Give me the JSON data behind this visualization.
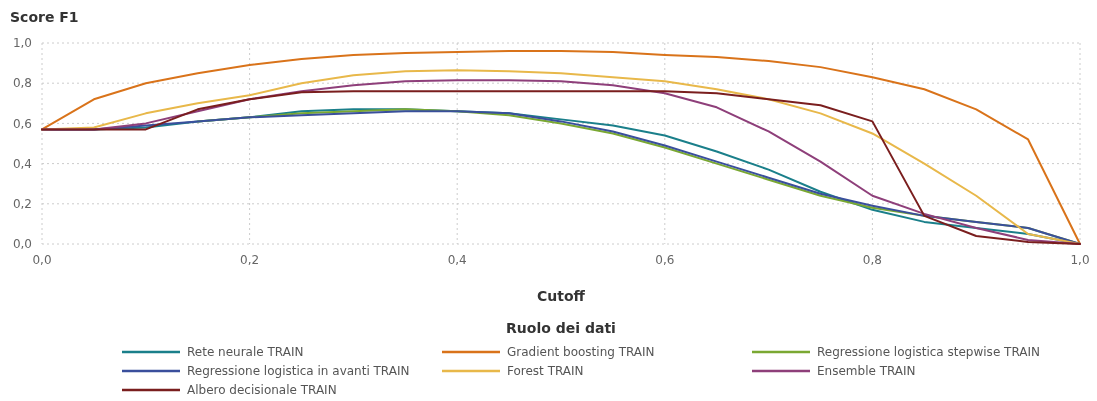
{
  "chart_data": {
    "type": "line",
    "title": "Score F1",
    "xlabel": "Cutoff",
    "legend_title": "Ruolo dei dati",
    "legend": "bottom",
    "grid": true,
    "marker": "none",
    "line_style": "solid",
    "x": [
      0,
      0.05,
      0.1,
      0.15,
      0.2,
      0.25,
      0.3,
      0.35,
      0.4,
      0.45,
      0.5,
      0.55,
      0.6,
      0.65,
      0.7,
      0.75,
      0.8,
      0.85,
      0.9,
      0.95,
      1
    ],
    "xlim": [
      0,
      1
    ],
    "ylim": [
      0,
      1
    ],
    "xticks": [
      {
        "value": 0,
        "label": "0,0"
      },
      {
        "value": 0.2,
        "label": "0,2"
      },
      {
        "value": 0.4,
        "label": "0,4"
      },
      {
        "value": 0.6,
        "label": "0,6"
      },
      {
        "value": 0.8,
        "label": "0,8"
      },
      {
        "value": 1,
        "label": "1,0"
      }
    ],
    "yticks": [
      {
        "value": 0,
        "label": "0,0"
      },
      {
        "value": 0.2,
        "label": "0,2"
      },
      {
        "value": 0.4,
        "label": "0,4"
      },
      {
        "value": 0.6,
        "label": "0,6"
      },
      {
        "value": 0.8,
        "label": "0,8"
      },
      {
        "value": 1,
        "label": "1,0"
      }
    ],
    "series": [
      {
        "name": "Rete neurale TRAIN",
        "color": "#1a7f8a",
        "values": [
          0.57,
          0.57,
          0.58,
          0.61,
          0.63,
          0.66,
          0.67,
          0.67,
          0.66,
          0.65,
          0.62,
          0.59,
          0.54,
          0.46,
          0.37,
          0.26,
          0.17,
          0.11,
          0.08,
          0.05,
          0
        ]
      },
      {
        "name": "Gradient boosting TRAIN",
        "color": "#d9731a",
        "values": [
          0.57,
          0.72,
          0.8,
          0.85,
          0.89,
          0.92,
          0.94,
          0.95,
          0.955,
          0.96,
          0.96,
          0.955,
          0.94,
          0.93,
          0.91,
          0.88,
          0.83,
          0.77,
          0.67,
          0.52,
          0
        ]
      },
      {
        "name": "Regressione logistica stepwise TRAIN",
        "color": "#7aa832",
        "values": [
          null,
          null,
          null,
          0.61,
          0.63,
          0.65,
          0.66,
          0.67,
          0.66,
          0.64,
          0.6,
          0.55,
          0.48,
          0.4,
          0.32,
          0.24,
          0.18,
          0.14,
          0.11,
          0.08,
          0
        ]
      },
      {
        "name": "Regressione logistica in avanti TRAIN",
        "color": "#3a4f9c",
        "values": [
          0.57,
          0.57,
          0.59,
          0.61,
          0.63,
          0.64,
          0.65,
          0.66,
          0.66,
          0.65,
          0.61,
          0.56,
          0.49,
          0.41,
          0.33,
          0.25,
          0.19,
          0.14,
          0.11,
          0.08,
          0
        ]
      },
      {
        "name": "Forest TRAIN",
        "color": "#e8b84a",
        "values": [
          0.57,
          0.58,
          0.65,
          0.7,
          0.74,
          0.8,
          0.84,
          0.86,
          0.865,
          0.86,
          0.85,
          0.83,
          0.81,
          0.77,
          0.72,
          0.65,
          0.55,
          0.4,
          0.24,
          0.05,
          0
        ]
      },
      {
        "name": "Ensemble TRAIN",
        "color": "#8e3f7a",
        "values": [
          0.57,
          0.57,
          0.6,
          0.66,
          0.72,
          0.76,
          0.79,
          0.81,
          0.815,
          0.815,
          0.81,
          0.79,
          0.75,
          0.68,
          0.56,
          0.41,
          0.24,
          0.15,
          0.08,
          0.02,
          0
        ]
      },
      {
        "name": "Albero decisionale TRAIN",
        "color": "#7a1e1e",
        "values": [
          0.57,
          0.57,
          0.57,
          0.67,
          0.72,
          0.755,
          0.76,
          0.76,
          0.76,
          0.76,
          0.76,
          0.76,
          0.76,
          0.75,
          0.72,
          0.69,
          0.61,
          0.14,
          0.04,
          0.01,
          0
        ]
      }
    ]
  }
}
